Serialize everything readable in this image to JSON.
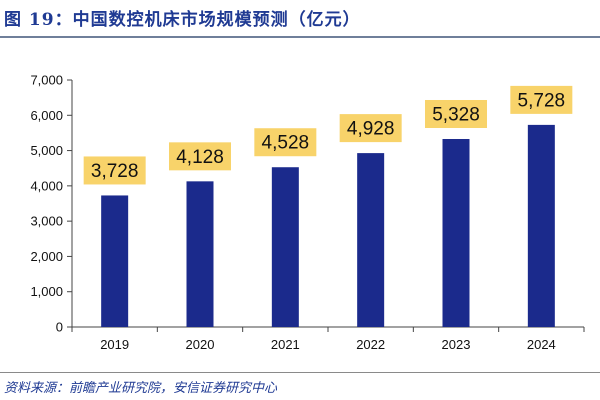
{
  "figure_title": "图 19：中国数控机床市场规模预测（亿元）",
  "source": "资料来源：前瞻产业研究院，安信证券研究中心",
  "colors": {
    "bar": "#1b2a8c",
    "label_bg": "#f8d36a",
    "axis": "#444444",
    "title": "#1f3a93"
  },
  "chart_data": {
    "type": "bar",
    "title": "中国数控机床市场规模预测（亿元）",
    "xlabel": "",
    "ylabel": "",
    "categories": [
      "2019",
      "2020",
      "2021",
      "2022",
      "2023",
      "2024"
    ],
    "values": [
      3728,
      4128,
      4528,
      4928,
      5328,
      5728
    ],
    "data_labels": [
      "3,728",
      "4,128",
      "4,528",
      "4,928",
      "5,328",
      "5,728"
    ],
    "ylim": [
      0,
      7000
    ],
    "yticks": [
      0,
      1000,
      2000,
      3000,
      4000,
      5000,
      6000,
      7000
    ],
    "ytick_labels": [
      "0",
      "1,000",
      "2,000",
      "3,000",
      "4,000",
      "5,000",
      "6,000",
      "7,000"
    ],
    "grid": false,
    "legend": "none"
  }
}
